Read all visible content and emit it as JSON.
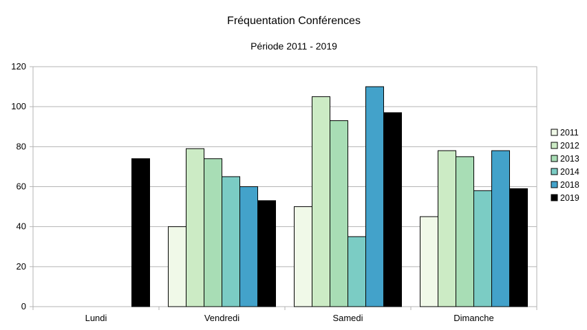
{
  "chart_data": {
    "type": "bar",
    "title": "Fréquentation Conférences",
    "subtitle": "Période 2011 - 2019",
    "xlabel": "",
    "ylabel": "",
    "categories": [
      "Lundi",
      "Vendredi",
      "Samedi",
      "Dimanche"
    ],
    "ylim": [
      0,
      120
    ],
    "yticks": [
      "0",
      "20",
      "40",
      "60",
      "80",
      "100",
      "120"
    ],
    "grid": true,
    "legend": "right",
    "series": [
      {
        "name": "2011",
        "color": "#f0f9e8",
        "values": [
          0,
          40,
          50,
          45
        ]
      },
      {
        "name": "2012",
        "color": "#ccebc5",
        "values": [
          0,
          79,
          105,
          78
        ]
      },
      {
        "name": "2013",
        "color": "#a8ddb5",
        "values": [
          0,
          74,
          93,
          75
        ]
      },
      {
        "name": "2014",
        "color": "#7bccc4",
        "values": [
          0,
          65,
          35,
          58
        ]
      },
      {
        "name": "2018",
        "color": "#43a2ca",
        "values": [
          0,
          60,
          110,
          78
        ]
      },
      {
        "name": "2019",
        "color": "#000000",
        "values": [
          74,
          53,
          97,
          59
        ]
      }
    ]
  }
}
